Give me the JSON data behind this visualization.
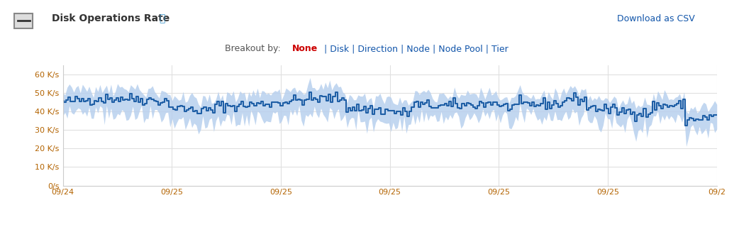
{
  "title": "Disk Operations Rate",
  "breakout_label": "Breakout by:",
  "breakout_selected": "None",
  "breakout_options": [
    "Disk",
    "Direction",
    "Node",
    "Node Pool",
    "Tier"
  ],
  "download_link": "Download as CSV",
  "ylabel_ticks": [
    "0/s",
    "10 K/s",
    "20 K/s",
    "30 K/s",
    "40 K/s",
    "50 K/s",
    "60 K/s"
  ],
  "ytick_values": [
    0,
    10,
    20,
    30,
    40,
    50,
    60
  ],
  "xlabels": [
    "09/24",
    "09/25",
    "09/25",
    "09/25",
    "09/25",
    "09/25",
    "09/2"
  ],
  "ylim": [
    0,
    65
  ],
  "line_color": "#1f5fa6",
  "band_color": "#b8d0ee",
  "background_color": "#ffffff",
  "plot_bg_color": "#ffffff",
  "grid_color": "#e0e0e0",
  "axis_label_color": "#b36300",
  "title_color": "#333333",
  "fig_width": 10.42,
  "fig_height": 3.27
}
